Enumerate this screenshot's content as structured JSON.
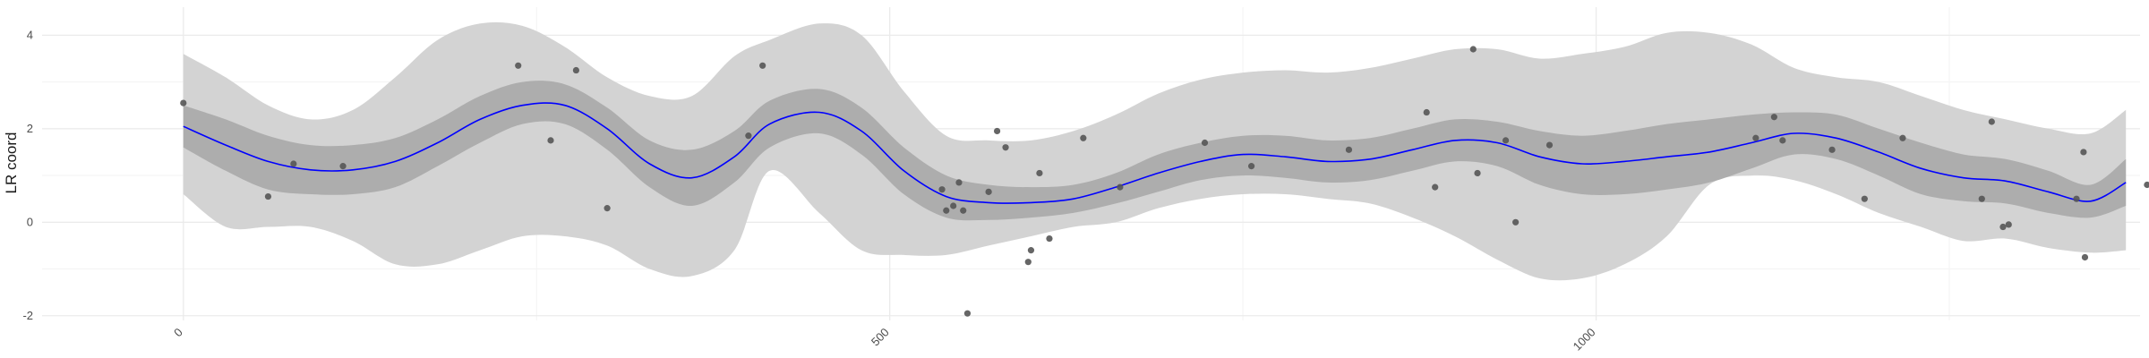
{
  "chart_data": {
    "type": "line",
    "title": "",
    "xlabel": "",
    "ylabel": "LR coord",
    "xlim": [
      -100,
      1385
    ],
    "ylim": [
      -2.1,
      4.6
    ],
    "x_ticks": [
      0,
      500,
      1000
    ],
    "x_tick_labels": [
      "0",
      "500",
      "1000"
    ],
    "x_minor_gridlines": [
      250,
      750,
      1250
    ],
    "y_ticks": [
      -2,
      0,
      2,
      4
    ],
    "y_tick_labels": [
      "-2",
      "0",
      "2",
      "4"
    ],
    "y_minor_gridlines": [
      -1,
      1,
      3
    ],
    "grid": true,
    "legend": "none",
    "colors": {
      "line": "#0000ff",
      "inner_band": "#adadad",
      "outer_band": "#d3d3d3",
      "points": "#555555",
      "grid": "#ebebeb"
    },
    "series": [
      {
        "kind": "fit_line",
        "x": [
          0,
          30,
          60,
          90,
          120,
          150,
          180,
          210,
          240,
          270,
          300,
          330,
          360,
          390,
          415,
          450,
          480,
          510,
          540,
          570,
          600,
          630,
          660,
          690,
          720,
          750,
          780,
          810,
          840,
          870,
          900,
          930,
          960,
          990,
          1020,
          1050,
          1080,
          1110,
          1140,
          1170,
          1200,
          1230,
          1260,
          1290,
          1320,
          1350,
          1375
        ],
        "y": [
          2.05,
          1.65,
          1.3,
          1.12,
          1.12,
          1.3,
          1.7,
          2.2,
          2.5,
          2.5,
          2.0,
          1.25,
          0.95,
          1.4,
          2.1,
          2.35,
          1.95,
          1.1,
          0.55,
          0.42,
          0.42,
          0.5,
          0.75,
          1.05,
          1.3,
          1.45,
          1.4,
          1.3,
          1.35,
          1.55,
          1.75,
          1.7,
          1.4,
          1.25,
          1.3,
          1.4,
          1.5,
          1.7,
          1.9,
          1.8,
          1.5,
          1.15,
          0.95,
          0.88,
          0.65,
          0.45,
          0.85
        ]
      },
      {
        "kind": "inner_band",
        "x": [
          0,
          30,
          60,
          90,
          120,
          150,
          180,
          210,
          240,
          270,
          300,
          330,
          360,
          390,
          415,
          450,
          480,
          510,
          540,
          570,
          600,
          630,
          660,
          690,
          720,
          750,
          780,
          810,
          840,
          870,
          900,
          930,
          960,
          990,
          1020,
          1050,
          1080,
          1110,
          1140,
          1170,
          1200,
          1230,
          1260,
          1290,
          1320,
          1350,
          1375
        ],
        "lower": [
          1.6,
          1.1,
          0.7,
          0.6,
          0.6,
          0.75,
          1.2,
          1.7,
          2.1,
          2.1,
          1.55,
          0.75,
          0.35,
          0.85,
          1.6,
          1.9,
          1.45,
          0.6,
          0.1,
          0.05,
          0.1,
          0.2,
          0.4,
          0.65,
          0.9,
          1.0,
          0.95,
          0.85,
          0.9,
          1.1,
          1.3,
          1.2,
          0.8,
          0.6,
          0.6,
          0.7,
          0.85,
          1.15,
          1.45,
          1.35,
          1.0,
          0.6,
          0.45,
          0.4,
          0.2,
          0.1,
          0.35
        ],
        "upper": [
          2.5,
          2.2,
          1.85,
          1.65,
          1.65,
          1.8,
          2.2,
          2.7,
          3.0,
          2.95,
          2.45,
          1.75,
          1.55,
          1.95,
          2.6,
          2.85,
          2.45,
          1.6,
          1.0,
          0.8,
          0.75,
          0.8,
          1.05,
          1.45,
          1.7,
          1.85,
          1.85,
          1.75,
          1.8,
          2.0,
          2.2,
          2.15,
          1.95,
          1.85,
          1.95,
          2.1,
          2.2,
          2.3,
          2.35,
          2.3,
          2.0,
          1.7,
          1.45,
          1.35,
          1.1,
          0.8,
          1.35
        ]
      },
      {
        "kind": "outer_band",
        "x": [
          0,
          30,
          60,
          90,
          120,
          150,
          180,
          210,
          240,
          270,
          300,
          330,
          360,
          390,
          415,
          450,
          480,
          510,
          540,
          570,
          600,
          630,
          660,
          690,
          720,
          750,
          780,
          810,
          840,
          870,
          900,
          930,
          960,
          990,
          1020,
          1050,
          1080,
          1110,
          1140,
          1170,
          1200,
          1230,
          1260,
          1290,
          1320,
          1350,
          1375
        ],
        "lower": [
          0.6,
          -0.1,
          -0.1,
          -0.1,
          -0.4,
          -0.9,
          -0.9,
          -0.6,
          -0.3,
          -0.3,
          -0.5,
          -1.0,
          -1.15,
          -0.6,
          1.1,
          0.2,
          -0.6,
          -0.7,
          -0.7,
          -0.5,
          -0.3,
          -0.1,
          0.0,
          0.3,
          0.5,
          0.6,
          0.6,
          0.5,
          0.4,
          0.1,
          -0.3,
          -0.8,
          -1.2,
          -1.2,
          -0.9,
          -0.3,
          0.8,
          1.0,
          0.9,
          0.6,
          0.2,
          -0.1,
          -0.4,
          -0.35,
          -0.55,
          -0.65,
          -0.6
        ],
        "upper": [
          3.6,
          3.1,
          2.5,
          2.2,
          2.4,
          3.1,
          3.9,
          4.25,
          4.2,
          3.75,
          3.1,
          2.7,
          2.7,
          3.55,
          3.9,
          4.25,
          4.0,
          2.8,
          1.85,
          1.75,
          1.75,
          1.95,
          2.3,
          2.75,
          3.05,
          3.2,
          3.25,
          3.2,
          3.3,
          3.5,
          3.7,
          3.7,
          3.5,
          3.6,
          3.75,
          4.05,
          4.05,
          3.8,
          3.3,
          3.1,
          3.0,
          2.7,
          2.4,
          2.2,
          2.0,
          1.9,
          2.4
        ]
      },
      {
        "kind": "points",
        "x": [
          0,
          60,
          78,
          113,
          237,
          260,
          278,
          300,
          400,
          410,
          537,
          540,
          545,
          549,
          552,
          555,
          570,
          576,
          582,
          598,
          600,
          606,
          613,
          637,
          663,
          723,
          756,
          825,
          880,
          886,
          913,
          916,
          936,
          943,
          967,
          1113,
          1126,
          1132,
          1167,
          1190,
          1217,
          1273,
          1280,
          1288,
          1292,
          1340,
          1345,
          1346,
          1390
        ],
        "y": [
          2.55,
          0.55,
          1.25,
          1.2,
          3.35,
          1.75,
          3.25,
          0.3,
          1.85,
          3.35,
          0.7,
          0.25,
          0.35,
          0.85,
          0.25,
          -1.95,
          0.65,
          1.95,
          1.6,
          -0.85,
          -0.6,
          1.05,
          -0.35,
          1.8,
          0.75,
          1.7,
          1.2,
          1.55,
          2.35,
          0.75,
          3.7,
          1.05,
          1.75,
          0.0,
          1.65,
          1.8,
          2.25,
          1.75,
          1.55,
          0.5,
          1.8,
          0.5,
          2.15,
          -0.1,
          -0.05,
          0.5,
          1.5,
          -0.75,
          0.8
        ]
      }
    ]
  }
}
